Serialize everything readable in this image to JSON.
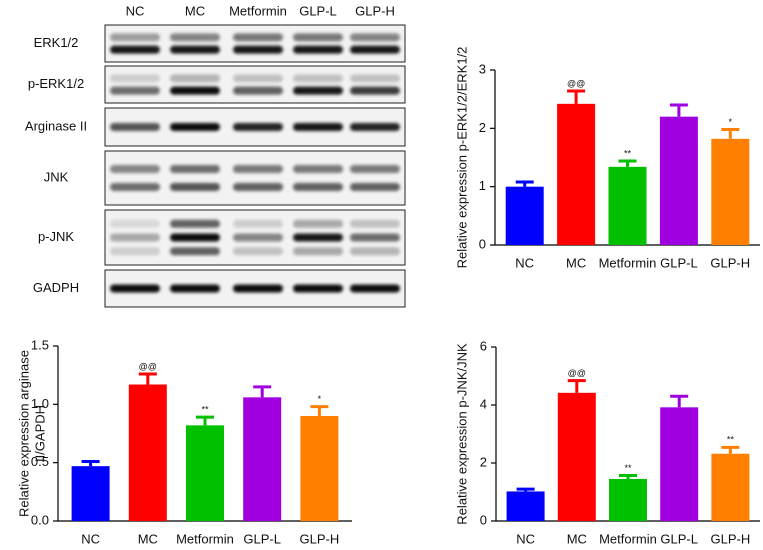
{
  "blot": {
    "lanes": [
      "NC",
      "MC",
      "Metformin",
      "GLP-L",
      "GLP-H"
    ],
    "rows": [
      "ERK1/2",
      "p-ERK1/2",
      "Arginase II",
      "JNK",
      "p-JNK",
      "GADPH"
    ]
  },
  "chart_data": [
    {
      "type": "bar",
      "ylabel": "Relative expression p-ERK1/2/ERK1/2",
      "categories": [
        "NC",
        "MC",
        "Metformin",
        "GLP-L",
        "GLP-H"
      ],
      "values": [
        1.0,
        2.42,
        1.34,
        2.2,
        1.82
      ],
      "errors": [
        0.08,
        0.22,
        0.1,
        0.2,
        0.16
      ],
      "annotations": [
        null,
        "@@",
        "**",
        null,
        "*"
      ],
      "colors": [
        "#0000ff",
        "#ff0000",
        "#00c000",
        "#a000e0",
        "#ff8000"
      ],
      "ylim": [
        0,
        3
      ],
      "yticks": [
        0,
        1,
        2,
        3
      ]
    },
    {
      "type": "bar",
      "ylabel": [
        "Relative expression arginase",
        "II/GAPDH"
      ],
      "categories": [
        "NC",
        "MC",
        "Metformin",
        "GLP-L",
        "GLP-H"
      ],
      "values": [
        0.47,
        1.17,
        0.82,
        1.06,
        0.9
      ],
      "errors": [
        0.04,
        0.09,
        0.07,
        0.09,
        0.08
      ],
      "annotations": [
        null,
        "@@",
        "**",
        null,
        "*"
      ],
      "colors": [
        "#0000ff",
        "#ff0000",
        "#00c000",
        "#a000e0",
        "#ff8000"
      ],
      "ylim": [
        0,
        1.5
      ],
      "yticks": [
        {
          "value": 0,
          "label": "0.0"
        },
        0.5,
        {
          "value": 1,
          "label": "1.0"
        },
        1.5
      ]
    },
    {
      "type": "bar",
      "ylabel": "Relative expression p-JNK/JNK",
      "categories": [
        "NC",
        "MC",
        "Metformin",
        "GLP-L",
        "GLP-H"
      ],
      "values": [
        1.02,
        4.42,
        1.45,
        3.92,
        2.32
      ],
      "errors": [
        0.08,
        0.42,
        0.12,
        0.38,
        0.22
      ],
      "annotations": [
        null,
        "@@",
        "**",
        null,
        "**"
      ],
      "colors": [
        "#0000ff",
        "#ff0000",
        "#00c000",
        "#a000e0",
        "#ff8000"
      ],
      "ylim": [
        0,
        6
      ],
      "yticks": [
        0,
        2,
        4,
        6
      ]
    }
  ]
}
